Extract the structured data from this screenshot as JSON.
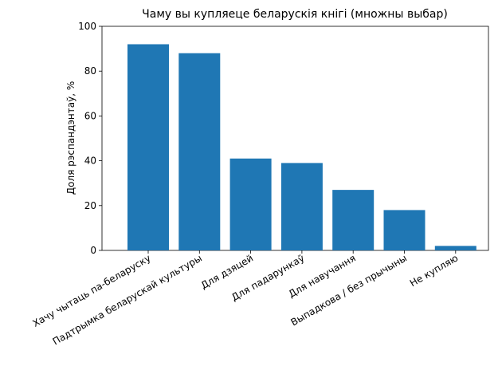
{
  "chart_data": {
    "type": "bar",
    "title": "Чаму вы купляеце беларускія кнігі (множны выбар)",
    "y_label": "Доля рэспандэнтаў, %",
    "categories": [
      "Хачу чытаць па-беларуску",
      "Падтрымка беларускай культуры",
      "Для дзяцей",
      "Для падарункаў",
      "Для навучання",
      "Выпадкова / без прычыны",
      "Не купляю"
    ],
    "values": [
      92,
      88,
      41,
      39,
      27,
      18,
      2
    ],
    "color": "#1f77b4",
    "ylim": [
      0,
      100
    ],
    "yticks": [
      0,
      20,
      40,
      60,
      80,
      100
    ],
    "grid": false
  }
}
